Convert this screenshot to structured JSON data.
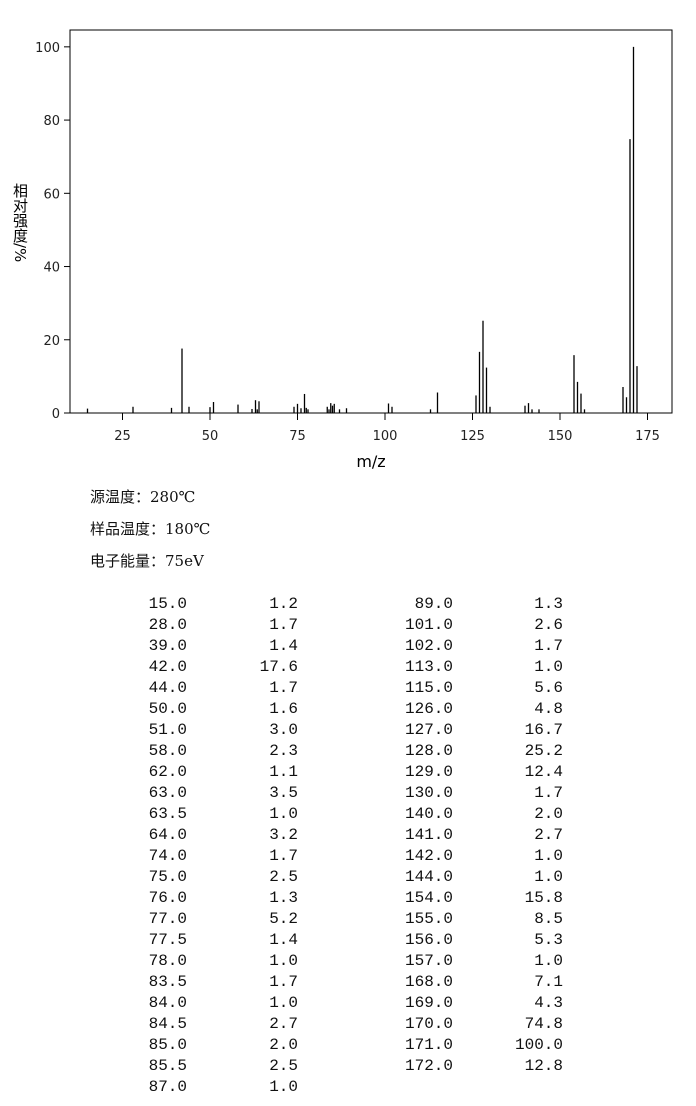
{
  "chart_data": {
    "type": "bar",
    "ylabel": "相对强度/%",
    "xlabel": "m/z",
    "color": "#000000",
    "x": [
      15,
      28,
      39,
      42,
      44,
      50,
      51,
      58,
      62,
      63,
      63.5,
      64,
      74,
      75,
      76,
      77,
      77.5,
      78,
      83.5,
      84,
      84.5,
      85,
      85.5,
      87,
      89,
      101,
      102,
      113,
      115,
      126,
      127,
      128,
      129,
      130,
      140,
      141,
      142,
      144,
      154,
      155,
      156,
      157,
      168,
      169,
      170,
      171,
      172
    ],
    "values": [
      1.2,
      1.7,
      1.4,
      17.6,
      1.7,
      1.6,
      3.0,
      2.3,
      1.1,
      3.5,
      1.0,
      3.2,
      1.7,
      2.5,
      1.3,
      5.2,
      1.4,
      1.0,
      1.7,
      1.0,
      2.7,
      2.0,
      2.5,
      1.0,
      1.3,
      2.6,
      1.7,
      1.0,
      5.6,
      4.8,
      16.7,
      25.2,
      12.4,
      1.7,
      2.0,
      2.7,
      1.0,
      1.0,
      15.8,
      8.5,
      5.3,
      1.0,
      7.1,
      4.3,
      74.8,
      100,
      12.8
    ],
    "xlim": [
      10,
      182
    ],
    "ylim": [
      0,
      104.6
    ],
    "xticks": [
      25,
      50,
      75,
      100,
      125,
      150,
      175
    ],
    "yticks": [
      0,
      20,
      40,
      60,
      80,
      100
    ]
  },
  "info": [
    "源温度：280℃",
    "样品温度：180℃",
    "电子能量：75eV"
  ],
  "table": {
    "left": [
      [
        "15.0",
        "1.2"
      ],
      [
        "28.0",
        "1.7"
      ],
      [
        "39.0",
        "1.4"
      ],
      [
        "42.0",
        "17.6"
      ],
      [
        "44.0",
        "1.7"
      ],
      [
        "50.0",
        "1.6"
      ],
      [
        "51.0",
        "3.0"
      ],
      [
        "58.0",
        "2.3"
      ],
      [
        "62.0",
        "1.1"
      ],
      [
        "63.0",
        "3.5"
      ],
      [
        "63.5",
        "1.0"
      ],
      [
        "64.0",
        "3.2"
      ],
      [
        "74.0",
        "1.7"
      ],
      [
        "75.0",
        "2.5"
      ],
      [
        "76.0",
        "1.3"
      ],
      [
        "77.0",
        "5.2"
      ],
      [
        "77.5",
        "1.4"
      ],
      [
        "78.0",
        "1.0"
      ],
      [
        "83.5",
        "1.7"
      ],
      [
        "84.0",
        "1.0"
      ],
      [
        "84.5",
        "2.7"
      ],
      [
        "85.0",
        "2.0"
      ],
      [
        "85.5",
        "2.5"
      ],
      [
        "87.0",
        "1.0"
      ]
    ],
    "right": [
      [
        "89.0",
        "1.3"
      ],
      [
        "101.0",
        "2.6"
      ],
      [
        "102.0",
        "1.7"
      ],
      [
        "113.0",
        "1.0"
      ],
      [
        "115.0",
        "5.6"
      ],
      [
        "126.0",
        "4.8"
      ],
      [
        "127.0",
        "16.7"
      ],
      [
        "128.0",
        "25.2"
      ],
      [
        "129.0",
        "12.4"
      ],
      [
        "130.0",
        "1.7"
      ],
      [
        "140.0",
        "2.0"
      ],
      [
        "141.0",
        "2.7"
      ],
      [
        "142.0",
        "1.0"
      ],
      [
        "144.0",
        "1.0"
      ],
      [
        "154.0",
        "15.8"
      ],
      [
        "155.0",
        "8.5"
      ],
      [
        "156.0",
        "5.3"
      ],
      [
        "157.0",
        "1.0"
      ],
      [
        "168.0",
        "7.1"
      ],
      [
        "169.0",
        "4.3"
      ],
      [
        "170.0",
        "74.8"
      ],
      [
        "171.0",
        "100.0"
      ],
      [
        "172.0",
        "12.8"
      ]
    ]
  }
}
